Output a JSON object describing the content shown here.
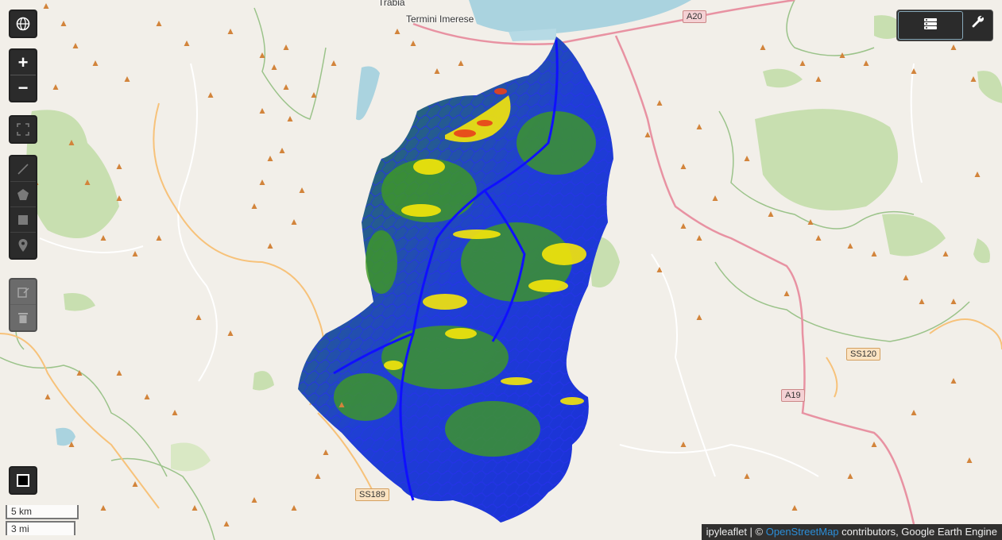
{
  "map": {
    "place_labels": [
      "Trabia",
      "Termini Imerese"
    ],
    "road_labels": [
      "A20",
      "SS120",
      "A19",
      "SS189"
    ],
    "colors": {
      "land": "#f2efe9",
      "forest": "#c8dfb0",
      "water": "#aad3df",
      "motorway": "#e892a2",
      "secondary": "#f7c27a",
      "peak": "#d2843b",
      "basin_low": "#1a2fd8",
      "basin_mid": "#2e8b1e",
      "basin_high": "#f5e60a",
      "basin_peak": "#e8411c"
    }
  },
  "controls": {
    "zoom_in": "+",
    "zoom_out": "−",
    "icons": [
      "globe-icon",
      "fullscreen-icon",
      "polyline-icon",
      "polygon-icon",
      "rectangle-icon",
      "marker-icon",
      "edit-icon",
      "trash-icon",
      "layers-icon",
      "wrench-icon",
      "basemap-toggle-icon"
    ]
  },
  "scale": {
    "metric": "5 km",
    "imperial": "3 mi"
  },
  "attribution": {
    "prefix": "ipyleaflet | ©",
    "link": "OpenStreetMap",
    "suffix": "contributors, Google Earth Engine"
  }
}
